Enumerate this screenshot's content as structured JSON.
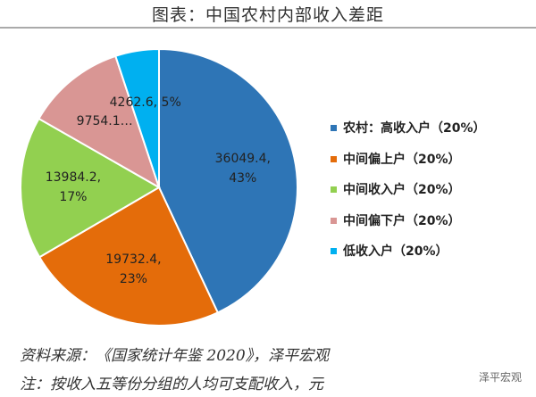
{
  "chart_data": {
    "type": "pie",
    "title": "图表：中国农村内部收入差距",
    "categories": [
      "农村：高收入户（20%）",
      "中间偏上户（20%）",
      "中间收入户（20%）",
      "中间偏下户（20%）",
      "低收入户（20%）"
    ],
    "values": [
      36049.4,
      19732.4,
      13984.2,
      9754.1,
      4262.6
    ],
    "value_labels": [
      "36049.4,\n43%",
      "19732.4,\n23%",
      "13984.2,\n17%",
      "9754.1…",
      "4262.6, 5%"
    ],
    "colors": [
      "#2e75b6",
      "#e46c0a",
      "#92d050",
      "#d99694",
      "#00b0f0"
    ],
    "legend": "right",
    "source": "资料来源：《国家统计年鉴 2020》，泽平宏观",
    "note": "注：按收入五等份分组的人均可支配收入，元",
    "watermark": "泽平宏观"
  }
}
